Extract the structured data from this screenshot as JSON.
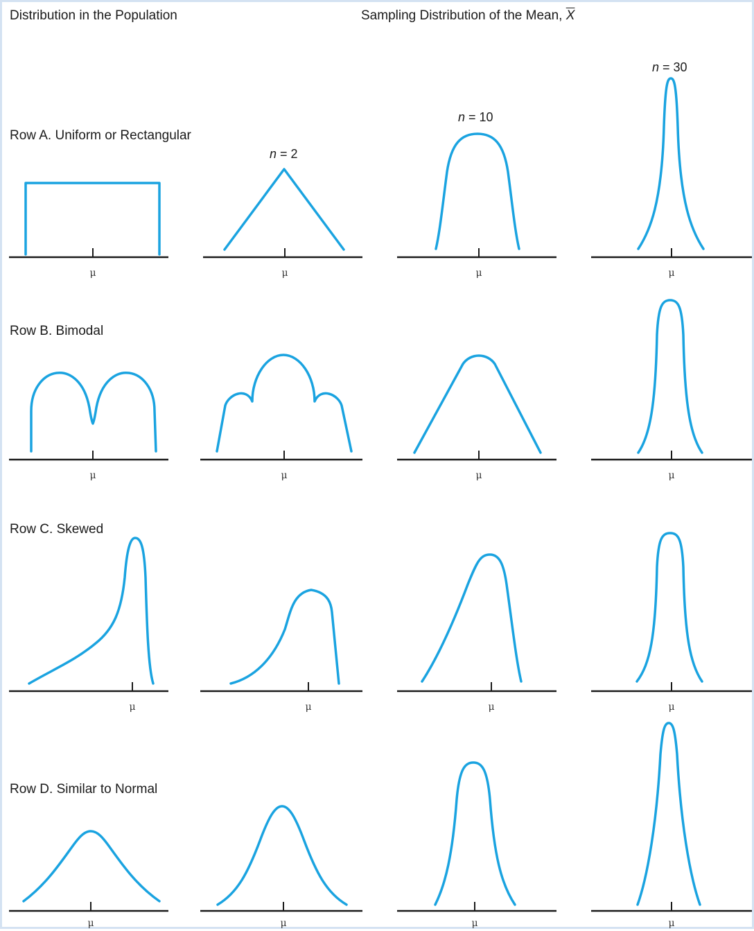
{
  "headers": {
    "population": "Distribution in the Population",
    "sampling_prefix": "Sampling Distribution of the Mean, ",
    "sampling_symbol": "X"
  },
  "rows": [
    {
      "label": "Row A. Uniform or Rectangular"
    },
    {
      "label": "Row B. Bimodal"
    },
    {
      "label": "Row C. Skewed"
    },
    {
      "label": "Row D. Similar to Normal"
    }
  ],
  "sample_sizes": [
    {
      "var": "n",
      "eq": " = 2"
    },
    {
      "var": "n",
      "eq": " = 10"
    },
    {
      "var": "n",
      "eq": " = 30"
    }
  ],
  "mean_symbol": "μ",
  "colors": {
    "curve": "#1aa3e0",
    "axis": "#1a1a1a",
    "border": "#d4e2f2"
  }
}
